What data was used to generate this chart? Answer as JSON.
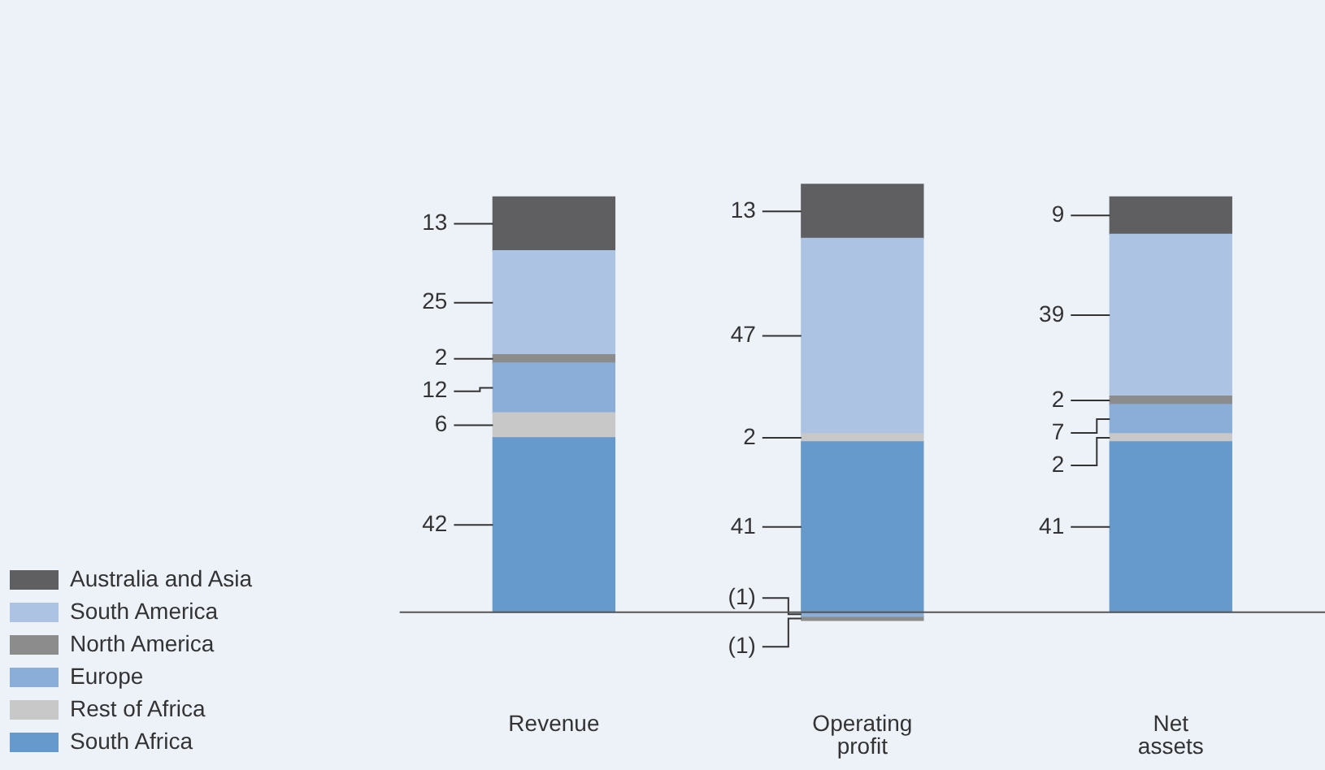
{
  "chart_data": {
    "type": "bar",
    "stacked": true,
    "categories": [
      "Revenue",
      "Operating profit",
      "Net assets"
    ],
    "legend": "bottom left",
    "series": [
      {
        "name": "South Africa",
        "color": "#6699cc",
        "values": [
          42,
          41,
          41
        ],
        "value_labels": [
          "42",
          "41",
          "41"
        ]
      },
      {
        "name": "Rest of Africa",
        "color": "#c8c8c8",
        "values": [
          6,
          2,
          2
        ],
        "value_labels": [
          "6",
          "2",
          "2"
        ]
      },
      {
        "name": "Europe",
        "color": "#8aaed8",
        "values": [
          12,
          -1,
          7
        ],
        "value_labels": [
          "12",
          "(1)",
          "7"
        ]
      },
      {
        "name": "North America",
        "color": "#8c8c8c",
        "values": [
          2,
          -1,
          2
        ],
        "value_labels": [
          "2",
          "(1)",
          "2"
        ]
      },
      {
        "name": "South America",
        "color": "#adc3e3",
        "values": [
          25,
          47,
          39
        ],
        "value_labels": [
          "25",
          "47",
          "39"
        ]
      },
      {
        "name": "Australia and Asia",
        "color": "#5f5f62",
        "values": [
          13,
          13,
          9
        ],
        "value_labels": [
          "13",
          "13",
          "9"
        ]
      }
    ]
  }
}
